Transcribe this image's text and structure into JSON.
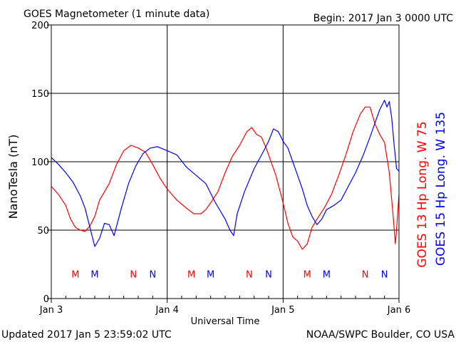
{
  "header": {
    "title": "GOES Magnetometer (1 minute data)",
    "begin": "Begin:  2017 Jan 3 0000 UTC"
  },
  "footer": {
    "updated": "Updated 2017 Jan  5 23:59:02 UTC",
    "credit": "NOAA/SWPC Boulder, CO USA"
  },
  "colors": {
    "goes13": "#ff0000",
    "goes15": "#0000ff",
    "axis": "#000000",
    "background": "#ffffff"
  },
  "chart_data": {
    "type": "line",
    "title": "GOES Magnetometer (1 minute data)",
    "xlabel": "Universal Time",
    "ylabel": "NanoTesla (nT)",
    "xlim": [
      "2017-01-03T00:00",
      "2017-01-06T00:00"
    ],
    "ylim": [
      0,
      200
    ],
    "y_ticks": [
      0,
      50,
      100,
      150,
      200
    ],
    "x_ticks": [
      {
        "t": "2017-01-03T00:00",
        "label": "Jan 3"
      },
      {
        "t": "2017-01-04T00:00",
        "label": "Jan 4"
      },
      {
        "t": "2017-01-05T00:00",
        "label": "Jan 5"
      },
      {
        "t": "2017-01-06T00:00",
        "label": "Jan 6"
      }
    ],
    "grid": true,
    "legend_position": "right-vertical",
    "series": [
      {
        "name": "GOES 13 Hp  Long. W 75",
        "color": "#ff0000",
        "points": [
          [
            "2017-01-03T00:00",
            82
          ],
          [
            "2017-01-03T01:30",
            76
          ],
          [
            "2017-01-03T03:00",
            68
          ],
          [
            "2017-01-03T04:00",
            58
          ],
          [
            "2017-01-03T05:00",
            52
          ],
          [
            "2017-01-03T06:00",
            50
          ],
          [
            "2017-01-03T07:00",
            49
          ],
          [
            "2017-01-03T08:00",
            53
          ],
          [
            "2017-01-03T09:00",
            60
          ],
          [
            "2017-01-03T10:00",
            72
          ],
          [
            "2017-01-03T11:00",
            78
          ],
          [
            "2017-01-03T12:00",
            84
          ],
          [
            "2017-01-03T13:30",
            98
          ],
          [
            "2017-01-03T15:00",
            108
          ],
          [
            "2017-01-03T16:30",
            112
          ],
          [
            "2017-01-03T18:00",
            110
          ],
          [
            "2017-01-03T19:30",
            107
          ],
          [
            "2017-01-03T21:00",
            98
          ],
          [
            "2017-01-03T22:30",
            88
          ],
          [
            "2017-01-04T00:00",
            80
          ],
          [
            "2017-01-04T02:00",
            72
          ],
          [
            "2017-01-04T04:00",
            66
          ],
          [
            "2017-01-04T05:30",
            62
          ],
          [
            "2017-01-04T07:00",
            62
          ],
          [
            "2017-01-04T08:00",
            65
          ],
          [
            "2017-01-04T09:00",
            70
          ],
          [
            "2017-01-04T10:30",
            78
          ],
          [
            "2017-01-04T12:00",
            92
          ],
          [
            "2017-01-04T13:30",
            104
          ],
          [
            "2017-01-04T15:00",
            112
          ],
          [
            "2017-01-04T16:30",
            122
          ],
          [
            "2017-01-04T17:30",
            125
          ],
          [
            "2017-01-04T18:30",
            120
          ],
          [
            "2017-01-04T19:30",
            118
          ],
          [
            "2017-01-04T20:30",
            110
          ],
          [
            "2017-01-04T21:30",
            100
          ],
          [
            "2017-01-04T22:30",
            90
          ],
          [
            "2017-01-05T00:00",
            70
          ],
          [
            "2017-01-05T01:00",
            55
          ],
          [
            "2017-01-05T02:00",
            45
          ],
          [
            "2017-01-05T03:00",
            42
          ],
          [
            "2017-01-05T04:00",
            36
          ],
          [
            "2017-01-05T05:00",
            40
          ],
          [
            "2017-01-05T06:00",
            52
          ],
          [
            "2017-01-05T07:00",
            58
          ],
          [
            "2017-01-05T08:30",
            66
          ],
          [
            "2017-01-05T10:00",
            76
          ],
          [
            "2017-01-05T11:30",
            90
          ],
          [
            "2017-01-05T13:00",
            105
          ],
          [
            "2017-01-05T14:30",
            122
          ],
          [
            "2017-01-05T16:00",
            135
          ],
          [
            "2017-01-05T17:00",
            140
          ],
          [
            "2017-01-05T18:00",
            140
          ],
          [
            "2017-01-05T19:00",
            128
          ],
          [
            "2017-01-05T20:00",
            120
          ],
          [
            "2017-01-05T21:00",
            114
          ],
          [
            "2017-01-05T22:00",
            92
          ],
          [
            "2017-01-05T22:45",
            62
          ],
          [
            "2017-01-05T23:15",
            40
          ],
          [
            "2017-01-05T23:35",
            55
          ],
          [
            "2017-01-06T00:00",
            76
          ]
        ]
      },
      {
        "name": "GOES 15 Hp  Long. W 135",
        "color": "#0000ff",
        "points": [
          [
            "2017-01-03T00:00",
            103
          ],
          [
            "2017-01-03T01:30",
            98
          ],
          [
            "2017-01-03T03:00",
            92
          ],
          [
            "2017-01-03T04:30",
            85
          ],
          [
            "2017-01-03T06:00",
            75
          ],
          [
            "2017-01-03T07:00",
            66
          ],
          [
            "2017-01-03T08:00",
            52
          ],
          [
            "2017-01-03T09:00",
            38
          ],
          [
            "2017-01-03T10:00",
            44
          ],
          [
            "2017-01-03T11:00",
            55
          ],
          [
            "2017-01-03T12:00",
            54
          ],
          [
            "2017-01-03T13:00",
            46
          ],
          [
            "2017-01-03T14:30",
            66
          ],
          [
            "2017-01-03T16:00",
            84
          ],
          [
            "2017-01-03T17:30",
            97
          ],
          [
            "2017-01-03T19:00",
            106
          ],
          [
            "2017-01-03T20:30",
            110
          ],
          [
            "2017-01-03T22:00",
            111
          ],
          [
            "2017-01-04T00:00",
            108
          ],
          [
            "2017-01-04T02:00",
            105
          ],
          [
            "2017-01-04T04:00",
            96
          ],
          [
            "2017-01-04T06:00",
            90
          ],
          [
            "2017-01-04T08:00",
            84
          ],
          [
            "2017-01-04T10:00",
            70
          ],
          [
            "2017-01-04T12:00",
            58
          ],
          [
            "2017-01-04T13:00",
            50
          ],
          [
            "2017-01-04T13:45",
            46
          ],
          [
            "2017-01-04T14:30",
            62
          ],
          [
            "2017-01-04T16:00",
            78
          ],
          [
            "2017-01-04T18:00",
            95
          ],
          [
            "2017-01-04T20:00",
            108
          ],
          [
            "2017-01-04T21:00",
            115
          ],
          [
            "2017-01-04T22:00",
            124
          ],
          [
            "2017-01-04T23:00",
            122
          ],
          [
            "2017-01-05T00:00",
            115
          ],
          [
            "2017-01-05T01:00",
            110
          ],
          [
            "2017-01-05T02:00",
            100
          ],
          [
            "2017-01-05T03:00",
            90
          ],
          [
            "2017-01-05T04:00",
            80
          ],
          [
            "2017-01-05T05:00",
            68
          ],
          [
            "2017-01-05T06:00",
            60
          ],
          [
            "2017-01-05T07:00",
            54
          ],
          [
            "2017-01-05T08:00",
            58
          ],
          [
            "2017-01-05T09:00",
            65
          ],
          [
            "2017-01-05T10:30",
            68
          ],
          [
            "2017-01-05T12:00",
            72
          ],
          [
            "2017-01-05T13:30",
            82
          ],
          [
            "2017-01-05T15:00",
            92
          ],
          [
            "2017-01-05T16:30",
            104
          ],
          [
            "2017-01-05T18:00",
            118
          ],
          [
            "2017-01-05T19:00",
            128
          ],
          [
            "2017-01-05T20:00",
            138
          ],
          [
            "2017-01-05T21:00",
            145
          ],
          [
            "2017-01-05T21:30",
            140
          ],
          [
            "2017-01-05T22:00",
            144
          ],
          [
            "2017-01-05T22:30",
            132
          ],
          [
            "2017-01-05T23:00",
            112
          ],
          [
            "2017-01-05T23:30",
            95
          ],
          [
            "2017-01-06T00:00",
            93
          ]
        ]
      }
    ],
    "noon_midnight_markers": [
      {
        "letter": "M",
        "t": "2017-01-03T05:00",
        "color": "#ff0000"
      },
      {
        "letter": "M",
        "t": "2017-01-03T09:00",
        "color": "#0000ff"
      },
      {
        "letter": "N",
        "t": "2017-01-03T17:00",
        "color": "#ff0000"
      },
      {
        "letter": "N",
        "t": "2017-01-03T21:00",
        "color": "#0000ff"
      },
      {
        "letter": "M",
        "t": "2017-01-04T05:00",
        "color": "#ff0000"
      },
      {
        "letter": "M",
        "t": "2017-01-04T09:00",
        "color": "#0000ff"
      },
      {
        "letter": "N",
        "t": "2017-01-04T17:00",
        "color": "#ff0000"
      },
      {
        "letter": "N",
        "t": "2017-01-04T21:00",
        "color": "#0000ff"
      },
      {
        "letter": "M",
        "t": "2017-01-05T05:00",
        "color": "#ff0000"
      },
      {
        "letter": "M",
        "t": "2017-01-05T09:00",
        "color": "#0000ff"
      },
      {
        "letter": "N",
        "t": "2017-01-05T17:00",
        "color": "#ff0000"
      },
      {
        "letter": "N",
        "t": "2017-01-05T21:00",
        "color": "#0000ff"
      }
    ],
    "marker_level": 18
  }
}
